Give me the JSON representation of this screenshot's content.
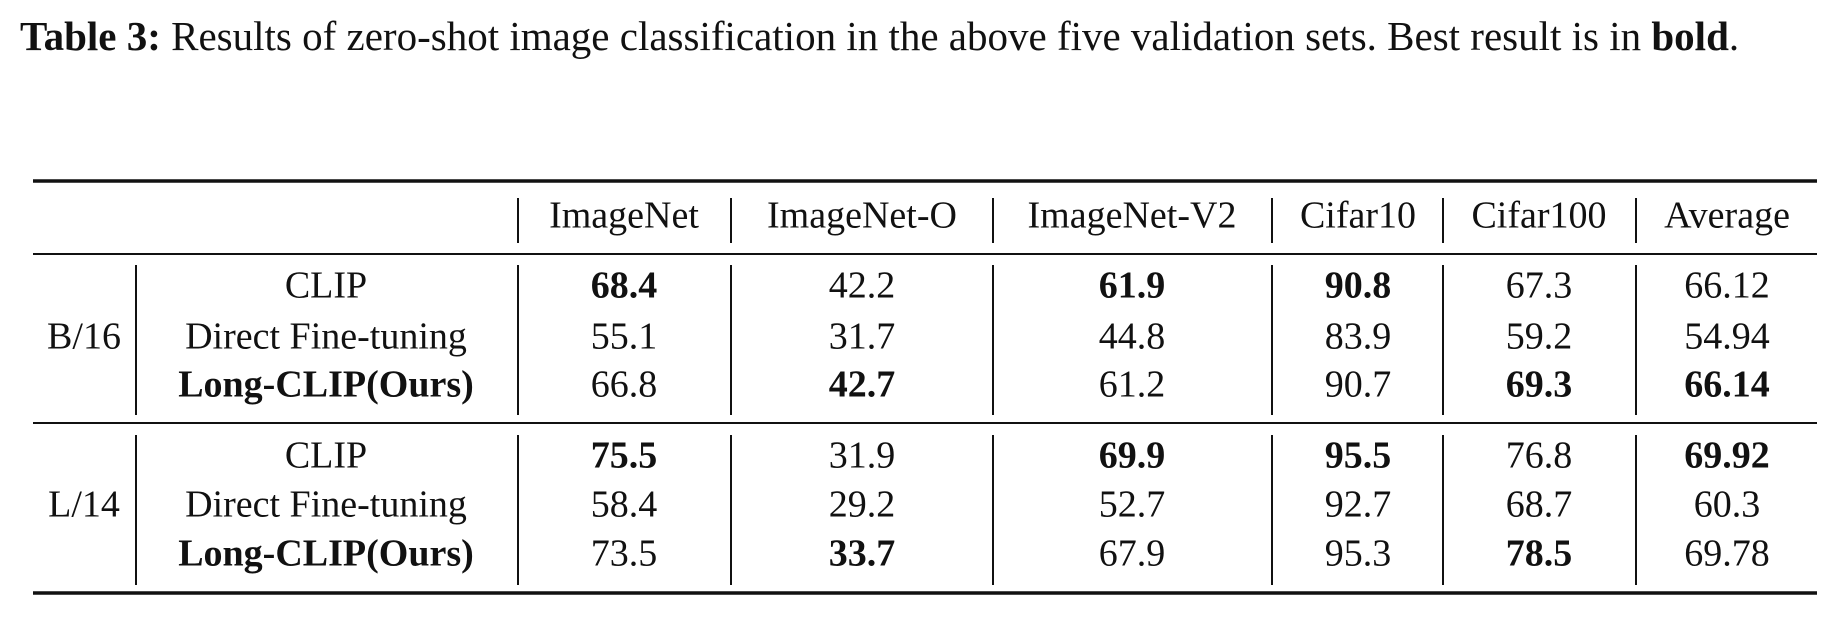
{
  "caption": {
    "label": "Table 3:",
    "text": "Results of zero-shot image classification in the above five validation sets. Best result is in",
    "bold_word": "bold",
    "end": "."
  },
  "table": {
    "columns": [
      "ImageNet",
      "ImageNet-O",
      "ImageNet-V2",
      "Cifar10",
      "Cifar100",
      "Average"
    ],
    "groups": [
      {
        "name": "B/16",
        "rows": [
          {
            "method": "CLIP",
            "method_bold": false,
            "values": [
              68.4,
              42.2,
              61.9,
              90.8,
              67.3,
              66.12
            ],
            "bold": [
              true,
              false,
              true,
              true,
              false,
              false
            ]
          },
          {
            "method": "Direct Fine-tuning",
            "method_bold": false,
            "values": [
              55.1,
              31.7,
              44.8,
              83.9,
              59.2,
              54.94
            ],
            "bold": [
              false,
              false,
              false,
              false,
              false,
              false
            ]
          },
          {
            "method": "Long-CLIP(Ours)",
            "method_bold": true,
            "values": [
              66.8,
              42.7,
              61.2,
              90.7,
              69.3,
              66.14
            ],
            "bold": [
              false,
              true,
              false,
              false,
              true,
              true
            ]
          }
        ]
      },
      {
        "name": "L/14",
        "rows": [
          {
            "method": "CLIP",
            "method_bold": false,
            "values": [
              75.5,
              31.9,
              69.9,
              95.5,
              76.8,
              69.92
            ],
            "bold": [
              true,
              false,
              true,
              true,
              false,
              true
            ]
          },
          {
            "method": "Direct Fine-tuning",
            "method_bold": false,
            "values": [
              58.4,
              29.2,
              52.7,
              92.7,
              68.7,
              60.3
            ],
            "bold": [
              false,
              false,
              false,
              false,
              false,
              false
            ]
          },
          {
            "method": "Long-CLIP(Ours)",
            "method_bold": true,
            "values": [
              73.5,
              33.7,
              67.9,
              95.3,
              78.5,
              69.78
            ],
            "bold": [
              false,
              true,
              false,
              false,
              true,
              false
            ]
          }
        ]
      }
    ]
  }
}
